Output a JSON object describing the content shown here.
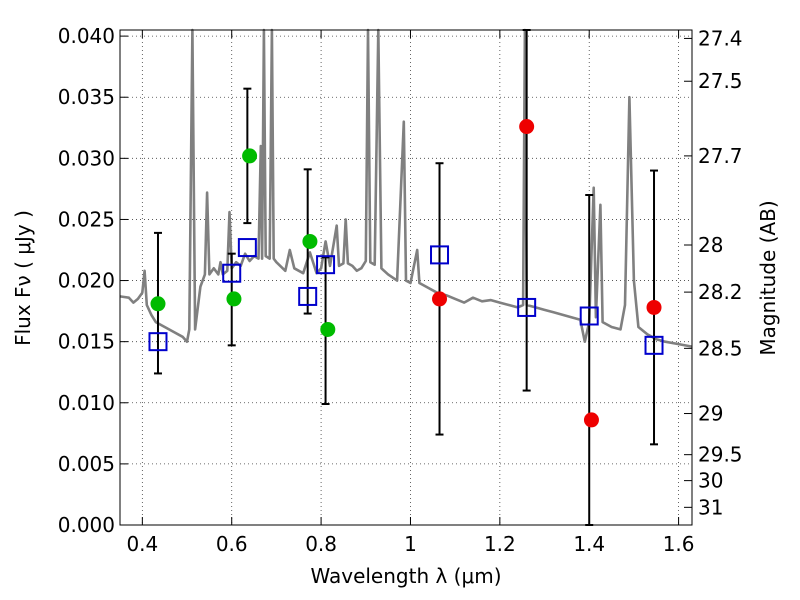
{
  "chart_data": {
    "type": "scatter",
    "title": "",
    "xlabel": "Wavelength  λ (μm)",
    "ylabel": "Flux  Fν  ( μJy )",
    "y2label": "Magnitude (AB)",
    "xlim": [
      0.35,
      1.63
    ],
    "ylim": [
      0.0,
      0.0405
    ],
    "grid": true,
    "x_ticks": [
      0.4,
      0.6,
      0.8,
      1.0,
      1.2,
      1.4,
      1.6
    ],
    "x_tick_labels": [
      "0.4",
      "0.6",
      "0.8",
      "1",
      "1.2",
      "1.4",
      "1.6"
    ],
    "y_ticks": [
      0.0,
      0.005,
      0.01,
      0.015,
      0.02,
      0.025,
      0.03,
      0.035,
      0.04
    ],
    "y_tick_labels": [
      "0.000",
      "0.005",
      "0.010",
      "0.015",
      "0.020",
      "0.025",
      "0.030",
      "0.035",
      "0.040"
    ],
    "y2_tick_labels": [
      "27.4",
      "27.5",
      "27.7",
      "28",
      "28.2",
      "28.5",
      "29",
      "29.5",
      "30",
      "31"
    ],
    "colors": {
      "spectrum": "#808080",
      "green_points": "#00bb00",
      "red_points": "#ee0000",
      "boxes": "#0000cc",
      "errorbars": "#000000",
      "grid": "#000000"
    },
    "series": [
      {
        "marker": "circle",
        "color": "#00bb00",
        "points": [
          {
            "x": 0.435,
            "y": 0.0181
          },
          {
            "x": 0.605,
            "y": 0.0185
          },
          {
            "x": 0.64,
            "y": 0.0302
          },
          {
            "x": 0.775,
            "y": 0.0232
          },
          {
            "x": 0.815,
            "y": 0.016
          }
        ]
      },
      {
        "marker": "circle",
        "color": "#ee0000",
        "points": [
          {
            "x": 1.065,
            "y": 0.0185
          },
          {
            "x": 1.26,
            "y": 0.0326
          },
          {
            "x": 1.405,
            "y": 0.0086
          },
          {
            "x": 1.545,
            "y": 0.0178
          }
        ]
      },
      {
        "marker": "square",
        "color": "#0000cc",
        "points": [
          {
            "x": 0.435,
            "y": 0.015,
            "err_low": 0.0124,
            "err_high": 0.0239
          },
          {
            "x": 0.6,
            "y": 0.0206,
            "err_low": 0.0147,
            "err_high": 0.0222
          },
          {
            "x": 0.635,
            "y": 0.0227,
            "err_low": 0.0247,
            "err_high": 0.0357
          },
          {
            "x": 0.77,
            "y": 0.0187,
            "err_low": 0.0173,
            "err_high": 0.0291
          },
          {
            "x": 0.81,
            "y": 0.0213,
            "err_low": 0.0099,
            "err_high": 0.0219
          },
          {
            "x": 1.065,
            "y": 0.0221,
            "err_low": 0.0074,
            "err_high": 0.0296
          },
          {
            "x": 1.26,
            "y": 0.0178,
            "err_low": 0.011,
            "err_high": 0.0405
          },
          {
            "x": 1.4,
            "y": 0.0171,
            "err_low": 0.0,
            "err_high": 0.027
          },
          {
            "x": 1.545,
            "y": 0.0147,
            "err_low": 0.0066,
            "err_high": 0.029
          }
        ]
      },
      {
        "marker": "line",
        "color": "#808080",
        "points": [
          {
            "x": 0.35,
            "y": 0.0187
          },
          {
            "x": 0.37,
            "y": 0.0186
          },
          {
            "x": 0.38,
            "y": 0.0182
          },
          {
            "x": 0.39,
            "y": 0.0185
          },
          {
            "x": 0.4,
            "y": 0.019
          },
          {
            "x": 0.405,
            "y": 0.0208
          },
          {
            "x": 0.41,
            "y": 0.018
          },
          {
            "x": 0.42,
            "y": 0.0172
          },
          {
            "x": 0.43,
            "y": 0.0166
          },
          {
            "x": 0.45,
            "y": 0.0162
          },
          {
            "x": 0.47,
            "y": 0.0158
          },
          {
            "x": 0.49,
            "y": 0.0154
          },
          {
            "x": 0.5,
            "y": 0.015
          },
          {
            "x": 0.505,
            "y": 0.016
          },
          {
            "x": 0.512,
            "y": 0.0405
          },
          {
            "x": 0.518,
            "y": 0.016
          },
          {
            "x": 0.53,
            "y": 0.0195
          },
          {
            "x": 0.54,
            "y": 0.0205
          },
          {
            "x": 0.545,
            "y": 0.0272
          },
          {
            "x": 0.55,
            "y": 0.0205
          },
          {
            "x": 0.56,
            "y": 0.021
          },
          {
            "x": 0.57,
            "y": 0.0205
          },
          {
            "x": 0.575,
            "y": 0.0215
          },
          {
            "x": 0.58,
            "y": 0.0205
          },
          {
            "x": 0.59,
            "y": 0.0208
          },
          {
            "x": 0.595,
            "y": 0.0256
          },
          {
            "x": 0.6,
            "y": 0.021
          },
          {
            "x": 0.61,
            "y": 0.0215
          },
          {
            "x": 0.62,
            "y": 0.0212
          },
          {
            "x": 0.63,
            "y": 0.0222
          },
          {
            "x": 0.64,
            "y": 0.0216
          },
          {
            "x": 0.65,
            "y": 0.022
          },
          {
            "x": 0.66,
            "y": 0.0218
          },
          {
            "x": 0.665,
            "y": 0.031
          },
          {
            "x": 0.668,
            "y": 0.0218
          },
          {
            "x": 0.672,
            "y": 0.0405
          },
          {
            "x": 0.676,
            "y": 0.022
          },
          {
            "x": 0.685,
            "y": 0.0218
          },
          {
            "x": 0.69,
            "y": 0.0405
          },
          {
            "x": 0.694,
            "y": 0.0218
          },
          {
            "x": 0.7,
            "y": 0.0215
          },
          {
            "x": 0.72,
            "y": 0.0208
          },
          {
            "x": 0.73,
            "y": 0.0225
          },
          {
            "x": 0.74,
            "y": 0.021
          },
          {
            "x": 0.76,
            "y": 0.0206
          },
          {
            "x": 0.775,
            "y": 0.0223
          },
          {
            "x": 0.79,
            "y": 0.0206
          },
          {
            "x": 0.8,
            "y": 0.021
          },
          {
            "x": 0.81,
            "y": 0.0232
          },
          {
            "x": 0.82,
            "y": 0.0212
          },
          {
            "x": 0.835,
            "y": 0.0245
          },
          {
            "x": 0.84,
            "y": 0.0212
          },
          {
            "x": 0.85,
            "y": 0.0214
          },
          {
            "x": 0.855,
            "y": 0.025
          },
          {
            "x": 0.86,
            "y": 0.0214
          },
          {
            "x": 0.87,
            "y": 0.0212
          },
          {
            "x": 0.88,
            "y": 0.0208
          },
          {
            "x": 0.89,
            "y": 0.021
          },
          {
            "x": 0.9,
            "y": 0.0216
          },
          {
            "x": 0.905,
            "y": 0.0405
          },
          {
            "x": 0.91,
            "y": 0.0215
          },
          {
            "x": 0.92,
            "y": 0.0213
          },
          {
            "x": 0.928,
            "y": 0.0405
          },
          {
            "x": 0.935,
            "y": 0.021
          },
          {
            "x": 0.95,
            "y": 0.0205
          },
          {
            "x": 0.97,
            "y": 0.02
          },
          {
            "x": 0.985,
            "y": 0.033
          },
          {
            "x": 0.99,
            "y": 0.02
          },
          {
            "x": 1.0,
            "y": 0.0198
          },
          {
            "x": 1.015,
            "y": 0.0225
          },
          {
            "x": 1.02,
            "y": 0.0198
          },
          {
            "x": 1.04,
            "y": 0.0194
          },
          {
            "x": 1.06,
            "y": 0.019
          },
          {
            "x": 1.08,
            "y": 0.0188
          },
          {
            "x": 1.1,
            "y": 0.0185
          },
          {
            "x": 1.12,
            "y": 0.0182
          },
          {
            "x": 1.14,
            "y": 0.0186
          },
          {
            "x": 1.16,
            "y": 0.0183
          },
          {
            "x": 1.18,
            "y": 0.0184
          },
          {
            "x": 1.2,
            "y": 0.0182
          },
          {
            "x": 1.22,
            "y": 0.018
          },
          {
            "x": 1.24,
            "y": 0.0178
          },
          {
            "x": 1.252,
            "y": 0.018
          },
          {
            "x": 1.256,
            "y": 0.0405
          },
          {
            "x": 1.26,
            "y": 0.018
          },
          {
            "x": 1.28,
            "y": 0.0178
          },
          {
            "x": 1.3,
            "y": 0.0176
          },
          {
            "x": 1.32,
            "y": 0.0174
          },
          {
            "x": 1.34,
            "y": 0.0172
          },
          {
            "x": 1.36,
            "y": 0.017
          },
          {
            "x": 1.38,
            "y": 0.0168
          },
          {
            "x": 1.39,
            "y": 0.015
          },
          {
            "x": 1.4,
            "y": 0.0166
          },
          {
            "x": 1.41,
            "y": 0.0276
          },
          {
            "x": 1.415,
            "y": 0.017
          },
          {
            "x": 1.425,
            "y": 0.0262
          },
          {
            "x": 1.43,
            "y": 0.0166
          },
          {
            "x": 1.45,
            "y": 0.0162
          },
          {
            "x": 1.47,
            "y": 0.016
          },
          {
            "x": 1.48,
            "y": 0.018
          },
          {
            "x": 1.49,
            "y": 0.035
          },
          {
            "x": 1.5,
            "y": 0.02
          },
          {
            "x": 1.51,
            "y": 0.0162
          },
          {
            "x": 1.53,
            "y": 0.0156
          },
          {
            "x": 1.55,
            "y": 0.0152
          },
          {
            "x": 1.57,
            "y": 0.015
          },
          {
            "x": 1.6,
            "y": 0.0148
          },
          {
            "x": 1.63,
            "y": 0.0146
          }
        ]
      }
    ]
  }
}
